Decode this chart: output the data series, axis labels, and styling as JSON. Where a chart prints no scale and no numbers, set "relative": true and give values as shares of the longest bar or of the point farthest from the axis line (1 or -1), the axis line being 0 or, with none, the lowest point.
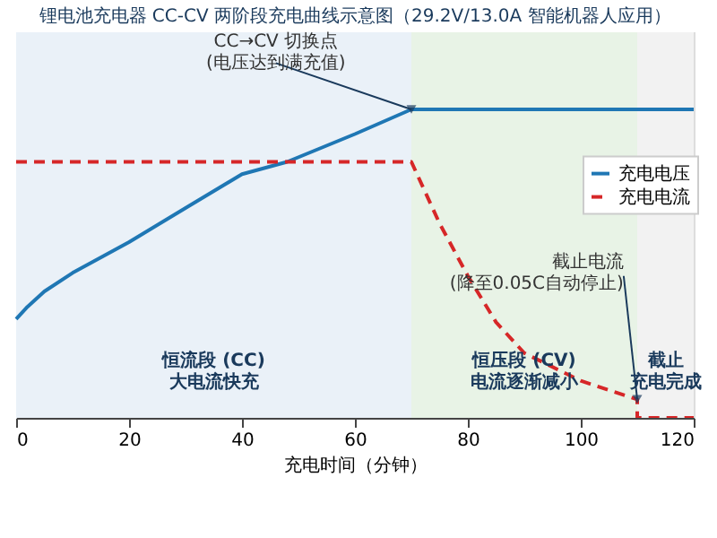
{
  "chart_data": {
    "type": "line",
    "title": "锂电池充电器 CC-CV 两阶段充电曲线示意图（29.2V/13.0A 智能机器人应用）",
    "xlabel": "充电时间（分钟）",
    "relative": true,
    "xlim": [
      0,
      120
    ],
    "xticks": [
      0,
      20,
      40,
      60,
      80,
      100,
      120
    ],
    "tick_labels": "x",
    "legend": "right",
    "grid": false,
    "series": [
      {
        "name": "充电电压",
        "color": "#1f77b4",
        "line_style": "solid",
        "x": [
          0,
          2,
          5,
          10,
          20,
          30,
          40,
          48,
          60,
          70,
          80,
          90,
          100,
          110,
          120
        ],
        "values": [
          0.32,
          0.36,
          0.41,
          0.47,
          0.57,
          0.68,
          0.79,
          0.83,
          0.92,
          1,
          1,
          1,
          1,
          1,
          1
        ]
      },
      {
        "name": "充电电流",
        "color": "#d62728",
        "line_style": "dashed",
        "x": [
          0,
          10,
          20,
          30,
          40,
          50,
          60,
          70,
          75,
          80,
          85,
          90,
          100,
          110,
          110,
          120
        ],
        "values": [
          0.83,
          0.83,
          0.83,
          0.83,
          0.83,
          0.83,
          0.83,
          0.83,
          0.63,
          0.46,
          0.31,
          0.21,
          0.12,
          0.06,
          0,
          0
        ]
      }
    ],
    "bands": [
      {
        "axis": "x",
        "from": 0,
        "to": 70,
        "label": "恒流段 (CC)大电流快充",
        "color": "#eaf1f8"
      },
      {
        "axis": "x",
        "from": 70,
        "to": 110,
        "label": "恒压段 (CV)电流逐渐减小",
        "color": "#e8f3e6"
      },
      {
        "axis": "x",
        "from": 110,
        "to": 120,
        "label": "截止充电完成",
        "color": "#f2f2f2"
      }
    ],
    "annotations": [
      {
        "text": "CC→CV 切换点\n(电压达到满充值)",
        "x": 70,
        "y": 1
      },
      {
        "text": "截止电流\n(降至0.05C自动停止)",
        "x": 110,
        "y": 0.06
      }
    ]
  }
}
